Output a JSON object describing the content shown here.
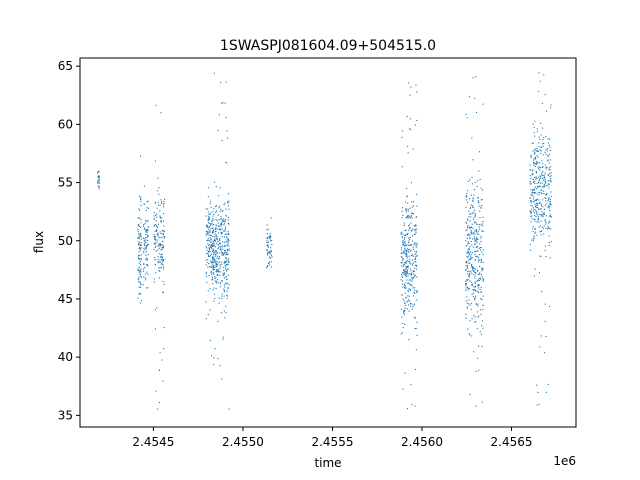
{
  "chart_data": {
    "type": "scatter",
    "title": "1SWASPJ081604.09+504515.0",
    "xlabel": "time",
    "ylabel": "flux",
    "x_offset_label": "1e6",
    "x_tick_labels": [
      "2.4545",
      "2.4550",
      "2.4555",
      "2.4560",
      "2.4565"
    ],
    "x_ticks": [
      2.4545,
      2.455,
      2.4555,
      2.456,
      2.4565
    ],
    "y_tick_labels": [
      "35",
      "40",
      "45",
      "50",
      "55",
      "60",
      "65"
    ],
    "y_ticks": [
      35,
      40,
      45,
      50,
      55,
      60,
      65
    ],
    "xlim": [
      2.45409,
      2.45686
    ],
    "ylim": [
      34.0,
      65.7
    ],
    "grid": false,
    "marker_color": "#1f77b4",
    "series": [
      {
        "clusters": [
          {
            "x": [
              2.454185,
              2.454195
            ],
            "y_center": 55.3,
            "y_spread": 0.6,
            "y_min": 54.5,
            "y_max": 56.0,
            "count": 25
          },
          {
            "x": [
              2.45441,
              2.45443
            ],
            "y_center": 49.0,
            "y_spread": 2.0,
            "y_min": 43.5,
            "y_max": 59.0,
            "count": 90
          },
          {
            "x": [
              2.45444,
              2.45447
            ],
            "y_center": 50.0,
            "y_spread": 1.6,
            "y_min": 46.0,
            "y_max": 55.0,
            "count": 80
          },
          {
            "x": [
              2.4545,
              2.45456
            ],
            "y_center": 50.2,
            "y_spread": 1.8,
            "y_min": 35.5,
            "y_max": 63.5,
            "count": 170
          },
          {
            "x": [
              2.45479,
              2.45483
            ],
            "y_center": 49.6,
            "y_spread": 1.8,
            "y_min": 40.0,
            "y_max": 55.0,
            "count": 150
          },
          {
            "x": [
              2.45483,
              2.45492
            ],
            "y_center": 49.3,
            "y_spread": 2.1,
            "y_min": 35.5,
            "y_max": 64.5,
            "count": 360
          },
          {
            "x": [
              2.45513,
              2.45516
            ],
            "y_center": 49.3,
            "y_spread": 0.9,
            "y_min": 47.5,
            "y_max": 52.5,
            "count": 60
          },
          {
            "x": [
              2.45588,
              2.45597
            ],
            "y_center": 48.7,
            "y_spread": 2.6,
            "y_min": 35.5,
            "y_max": 64.5,
            "count": 360
          },
          {
            "x": [
              2.45624,
              2.45634
            ],
            "y_center": 48.6,
            "y_spread": 3.0,
            "y_min": 35.5,
            "y_max": 64.5,
            "count": 380
          },
          {
            "x": [
              2.4566,
              2.45672
            ],
            "y_center": 54.6,
            "y_spread": 2.6,
            "y_min": 35.5,
            "y_max": 64.5,
            "count": 400
          }
        ]
      }
    ]
  }
}
